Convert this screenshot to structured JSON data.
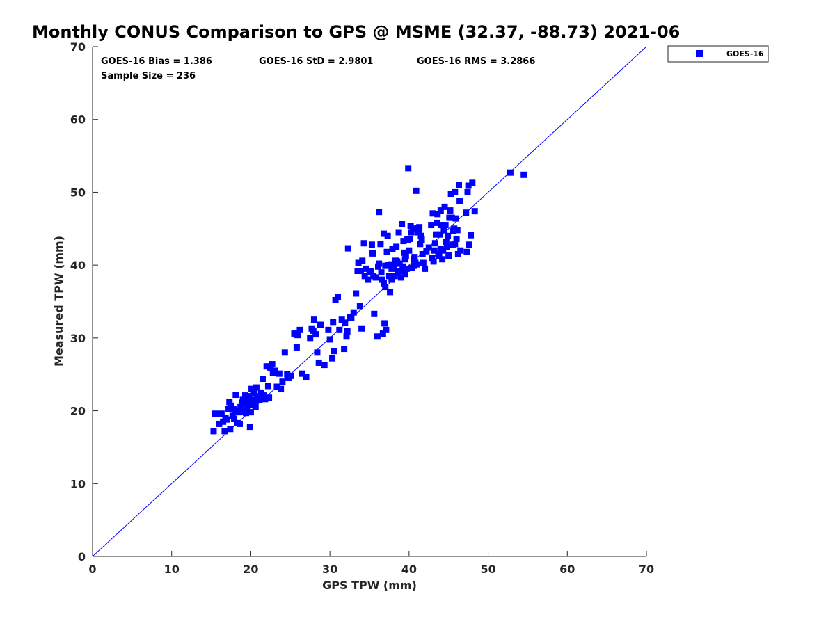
{
  "chart_data": {
    "type": "scatter",
    "title": "Monthly CONUS Comparison to GPS @ MSME (32.37, -88.73) 2021-06",
    "xlabel": "GPS TPW (mm)",
    "ylabel": "Measured TPW (mm)",
    "xlim": [
      0,
      70
    ],
    "ylim": [
      0,
      70
    ],
    "xticks": [
      0,
      10,
      20,
      30,
      40,
      50,
      60,
      70
    ],
    "yticks": [
      0,
      10,
      20,
      30,
      40,
      50,
      60,
      70
    ],
    "grid": false,
    "legend_position": "top-right, outside plot",
    "reference_line": {
      "name": "1:1 line",
      "from": [
        0,
        0
      ],
      "to": [
        70,
        70
      ],
      "color": "#0000ff"
    },
    "stats": {
      "bias": "GOES-16 Bias = 1.386",
      "std": "GOES-16 StD = 2.9801",
      "rms": "GOES-16 RMS = 3.2866",
      "sample_size": "Sample Size = 236"
    },
    "series": [
      {
        "name": "GOES-16",
        "color": "#0000ff",
        "marker": "square",
        "points": [
          [
            15.3,
            17.2
          ],
          [
            15.5,
            19.6
          ],
          [
            16.0,
            18.2
          ],
          [
            16.3,
            19.6
          ],
          [
            16.5,
            18.5
          ],
          [
            16.7,
            17.2
          ],
          [
            16.8,
            19.0
          ],
          [
            17.0,
            18.8
          ],
          [
            17.2,
            20.2
          ],
          [
            17.3,
            21.2
          ],
          [
            17.4,
            17.5
          ],
          [
            17.5,
            20.7
          ],
          [
            17.7,
            19.3
          ],
          [
            17.8,
            20.2
          ],
          [
            18.0,
            20.0
          ],
          [
            18.1,
            22.2
          ],
          [
            18.3,
            18.3
          ],
          [
            18.5,
            19.8
          ],
          [
            18.6,
            18.2
          ],
          [
            18.7,
            20.5
          ],
          [
            18.8,
            20.0
          ],
          [
            19.0,
            21.5
          ],
          [
            19.1,
            20.9
          ],
          [
            19.2,
            19.9
          ],
          [
            19.3,
            22.1
          ],
          [
            19.4,
            21.0
          ],
          [
            19.5,
            21.8
          ],
          [
            19.6,
            20.3
          ],
          [
            19.7,
            21.5
          ],
          [
            19.8,
            22.0
          ],
          [
            19.9,
            17.8
          ],
          [
            20.0,
            21.2
          ],
          [
            20.1,
            23.0
          ],
          [
            20.2,
            20.8
          ],
          [
            20.3,
            21.5
          ],
          [
            20.4,
            22.4
          ],
          [
            20.5,
            21.0
          ],
          [
            20.6,
            20.5
          ],
          [
            20.7,
            23.2
          ],
          [
            20.8,
            21.8
          ],
          [
            21.0,
            22.0
          ],
          [
            21.1,
            21.5
          ],
          [
            21.3,
            22.5
          ],
          [
            21.5,
            24.4
          ],
          [
            21.6,
            22.1
          ],
          [
            21.8,
            21.6
          ],
          [
            22.0,
            26.1
          ],
          [
            22.2,
            23.4
          ],
          [
            22.3,
            21.8
          ],
          [
            22.5,
            25.9
          ],
          [
            22.7,
            26.4
          ],
          [
            23.0,
            25.5
          ],
          [
            23.3,
            23.3
          ],
          [
            23.6,
            25.1
          ],
          [
            23.8,
            23.0
          ],
          [
            24.0,
            24.0
          ],
          [
            24.3,
            28.0
          ],
          [
            24.6,
            25.0
          ],
          [
            24.8,
            24.5
          ],
          [
            25.1,
            24.8
          ],
          [
            25.5,
            30.6
          ],
          [
            25.8,
            28.7
          ],
          [
            25.9,
            30.4
          ],
          [
            26.2,
            31.1
          ],
          [
            26.5,
            25.1
          ],
          [
            27.0,
            24.6
          ],
          [
            27.5,
            30.0
          ],
          [
            27.7,
            31.3
          ],
          [
            27.9,
            31.0
          ],
          [
            28.0,
            32.5
          ],
          [
            28.2,
            30.5
          ],
          [
            28.4,
            28.0
          ],
          [
            28.6,
            26.6
          ],
          [
            28.8,
            31.8
          ],
          [
            29.3,
            26.3
          ],
          [
            29.8,
            31.1
          ],
          [
            30.0,
            29.8
          ],
          [
            30.3,
            27.2
          ],
          [
            30.4,
            32.2
          ],
          [
            30.5,
            28.2
          ],
          [
            30.7,
            35.2
          ],
          [
            31.0,
            35.6
          ],
          [
            31.2,
            31.1
          ],
          [
            31.5,
            32.5
          ],
          [
            31.8,
            28.5
          ],
          [
            31.9,
            32.1
          ],
          [
            32.1,
            30.2
          ],
          [
            32.2,
            30.9
          ],
          [
            32.3,
            42.3
          ],
          [
            32.5,
            32.8
          ],
          [
            32.7,
            32.8
          ],
          [
            33.0,
            33.5
          ],
          [
            33.3,
            36.1
          ],
          [
            33.5,
            39.2
          ],
          [
            33.6,
            40.3
          ],
          [
            33.8,
            34.4
          ],
          [
            34.0,
            31.3
          ],
          [
            34.1,
            40.6
          ],
          [
            34.3,
            43.0
          ],
          [
            34.4,
            38.5
          ],
          [
            34.6,
            39.5
          ],
          [
            34.8,
            38.0
          ],
          [
            35.0,
            39.0
          ],
          [
            35.2,
            39.2
          ],
          [
            35.3,
            42.8
          ],
          [
            35.4,
            41.6
          ],
          [
            35.6,
            33.3
          ],
          [
            35.8,
            38.3
          ],
          [
            36.0,
            30.2
          ],
          [
            36.1,
            39.8
          ],
          [
            36.2,
            47.3
          ],
          [
            36.4,
            42.9
          ],
          [
            36.5,
            39.0
          ],
          [
            36.6,
            38.0
          ],
          [
            36.7,
            30.6
          ],
          [
            36.8,
            44.3
          ],
          [
            36.8,
            37.5
          ],
          [
            36.9,
            32.0
          ],
          [
            37.0,
            39.9
          ],
          [
            37.0,
            37.0
          ],
          [
            37.1,
            31.1
          ],
          [
            37.2,
            41.8
          ],
          [
            37.3,
            44.0
          ],
          [
            37.4,
            40.0
          ],
          [
            37.5,
            38.5
          ],
          [
            37.6,
            36.3
          ],
          [
            37.7,
            40.1
          ],
          [
            37.8,
            38.0
          ],
          [
            37.9,
            42.2
          ],
          [
            38.0,
            40.0
          ],
          [
            38.1,
            39.7
          ],
          [
            38.2,
            38.5
          ],
          [
            38.4,
            42.5
          ],
          [
            38.5,
            40.5
          ],
          [
            38.6,
            39.0
          ],
          [
            38.7,
            44.5
          ],
          [
            38.8,
            40.2
          ],
          [
            38.9,
            39.2
          ],
          [
            39.0,
            38.3
          ],
          [
            39.1,
            45.6
          ],
          [
            39.2,
            39.8
          ],
          [
            39.3,
            43.3
          ],
          [
            39.4,
            41.7
          ],
          [
            39.5,
            40.8
          ],
          [
            39.6,
            41.2
          ],
          [
            39.7,
            39.5
          ],
          [
            39.8,
            43.5
          ],
          [
            39.9,
            53.3
          ],
          [
            40.0,
            42.0
          ],
          [
            40.1,
            43.6
          ],
          [
            40.2,
            45.4
          ],
          [
            40.3,
            44.5
          ],
          [
            40.4,
            39.6
          ],
          [
            40.5,
            45.0
          ],
          [
            40.6,
            40.8
          ],
          [
            40.7,
            41.1
          ],
          [
            40.8,
            40.3
          ],
          [
            40.9,
            50.2
          ],
          [
            41.0,
            40.1
          ],
          [
            41.2,
            44.5
          ],
          [
            41.3,
            45.2
          ],
          [
            41.4,
            42.9
          ],
          [
            41.5,
            44.0
          ],
          [
            41.6,
            43.5
          ],
          [
            41.7,
            41.5
          ],
          [
            41.8,
            40.3
          ],
          [
            42.0,
            39.5
          ],
          [
            42.2,
            41.9
          ],
          [
            42.5,
            42.4
          ],
          [
            42.8,
            45.5
          ],
          [
            43.0,
            47.1
          ],
          [
            43.1,
            40.5
          ],
          [
            43.2,
            42.0
          ],
          [
            43.3,
            43.0
          ],
          [
            43.5,
            45.8
          ],
          [
            43.6,
            47.0
          ],
          [
            43.7,
            41.5
          ],
          [
            43.8,
            41.3
          ],
          [
            43.9,
            44.2
          ],
          [
            44.0,
            47.5
          ],
          [
            44.1,
            45.5
          ],
          [
            44.2,
            40.8
          ],
          [
            44.3,
            42.0
          ],
          [
            44.4,
            44.8
          ],
          [
            44.5,
            48.0
          ],
          [
            44.6,
            45.5
          ],
          [
            44.7,
            43.2
          ],
          [
            44.8,
            42.5
          ],
          [
            44.9,
            44.0
          ],
          [
            45.0,
            41.3
          ],
          [
            45.1,
            46.5
          ],
          [
            45.2,
            47.5
          ],
          [
            45.3,
            49.8
          ],
          [
            45.4,
            46.5
          ],
          [
            45.5,
            42.8
          ],
          [
            45.6,
            44.7
          ],
          [
            45.7,
            45.0
          ],
          [
            45.8,
            50.0
          ],
          [
            45.9,
            46.4
          ],
          [
            46.0,
            43.6
          ],
          [
            46.1,
            44.8
          ],
          [
            46.2,
            41.5
          ],
          [
            46.3,
            51.0
          ],
          [
            46.4,
            48.8
          ],
          [
            46.5,
            42.0
          ],
          [
            47.2,
            47.2
          ],
          [
            47.3,
            41.8
          ],
          [
            47.4,
            50.0
          ],
          [
            47.5,
            50.9
          ],
          [
            47.6,
            42.8
          ],
          [
            47.8,
            44.1
          ],
          [
            48.0,
            51.3
          ],
          [
            48.3,
            47.4
          ],
          [
            52.8,
            52.7
          ],
          [
            54.5,
            52.4
          ],
          [
            22.4,
            26.0
          ],
          [
            24.7,
            24.7
          ],
          [
            19.4,
            19.7
          ],
          [
            20.3,
            20.9
          ],
          [
            17.9,
            18.9
          ],
          [
            21.2,
            21.9
          ],
          [
            18.9,
            21.1
          ],
          [
            20.0,
            19.8
          ],
          [
            22.8,
            25.2
          ],
          [
            33.9,
            39.2
          ],
          [
            35.5,
            38.5
          ],
          [
            37.8,
            39.5
          ],
          [
            39.5,
            38.8
          ],
          [
            40.6,
            39.9
          ],
          [
            42.9,
            41.0
          ],
          [
            44.0,
            42.2
          ],
          [
            45.8,
            42.9
          ],
          [
            38.3,
            40.6
          ],
          [
            41.1,
            45.1
          ],
          [
            43.4,
            44.2
          ],
          [
            36.2,
            40.2
          ]
        ]
      }
    ]
  }
}
